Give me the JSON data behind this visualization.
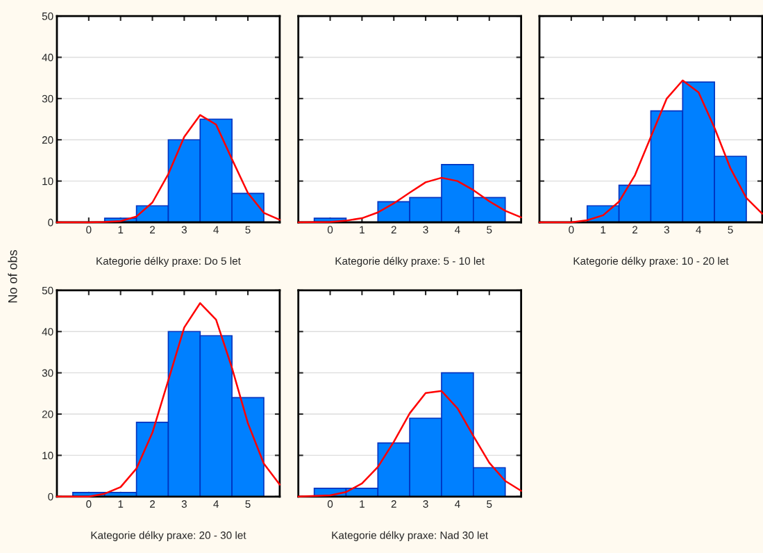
{
  "chart_data": [
    {
      "type": "histogram",
      "xlabel": "Kategorie délky praxe: Do 5 let",
      "ylabel": "No of obs",
      "xlim": [
        -1,
        6
      ],
      "xticks": [
        0,
        1,
        2,
        3,
        4,
        5
      ],
      "ylim": [
        0,
        50
      ],
      "yticks": [
        0,
        10,
        20,
        30,
        40,
        50
      ],
      "grid": "y",
      "series": [
        {
          "type": "histogram",
          "bins": [
            -0.5,
            0.5,
            1.5,
            2.5,
            3.5,
            4.5,
            5.5
          ],
          "values": [
            0,
            1,
            4,
            20,
            25,
            7
          ],
          "color": "#0080ff"
        },
        {
          "type": "line",
          "x": [
            -1,
            0,
            0.5,
            1,
            1.5,
            2,
            2.5,
            3,
            3.5,
            4,
            4.5,
            5,
            5.5,
            6
          ],
          "values": [
            0,
            0,
            0.1,
            0.3,
            1.4,
            4.8,
            11.7,
            20.7,
            26,
            23.7,
            15.3,
            7.1,
            2.3,
            0.6
          ],
          "color": "#ff0000"
        }
      ]
    },
    {
      "type": "histogram",
      "xlabel": "Kategorie délky praxe: 5 - 10 let",
      "xlim": [
        -1,
        6
      ],
      "xticks": [
        0,
        1,
        2,
        3,
        4,
        5
      ],
      "ylim": [
        0,
        50
      ],
      "yticks": [
        0,
        10,
        20,
        30,
        40,
        50
      ],
      "grid": "y",
      "tick_labels": "x",
      "series": [
        {
          "type": "histogram",
          "bins": [
            -0.5,
            0.5,
            1.5,
            2.5,
            3.5,
            4.5,
            5.5
          ],
          "values": [
            1,
            0,
            5,
            6,
            14,
            6
          ],
          "color": "#0080ff"
        },
        {
          "type": "line",
          "x": [
            -1,
            0,
            0.5,
            1,
            1.5,
            2,
            2.5,
            3,
            3.5,
            4,
            4.5,
            5,
            5.5,
            6
          ],
          "values": [
            0,
            0.1,
            0.4,
            1,
            2.4,
            4.6,
            7.2,
            9.7,
            10.8,
            10,
            7.8,
            5.1,
            2.8,
            1.2
          ],
          "color": "#ff0000"
        }
      ]
    },
    {
      "type": "histogram",
      "xlabel": "Kategorie délky praxe: 10 - 20 let",
      "xlim": [
        -1,
        6
      ],
      "xticks": [
        0,
        1,
        2,
        3,
        4,
        5
      ],
      "ylim": [
        0,
        50
      ],
      "yticks": [
        0,
        10,
        20,
        30,
        40,
        50
      ],
      "grid": "y",
      "tick_labels": "x",
      "series": [
        {
          "type": "histogram",
          "bins": [
            -0.5,
            0.5,
            1.5,
            2.5,
            3.5,
            4.5,
            5.5
          ],
          "values": [
            0,
            4,
            9,
            27,
            34,
            16
          ],
          "color": "#0080ff"
        },
        {
          "type": "line",
          "x": [
            -1,
            0,
            0.5,
            1,
            1.5,
            2,
            2.5,
            3,
            3.5,
            4,
            4.5,
            5,
            5.5,
            6
          ],
          "values": [
            0,
            0,
            0.5,
            1.7,
            5,
            11.4,
            20.7,
            30,
            34.4,
            31.5,
            22.9,
            13.1,
            5.9,
            2.1
          ],
          "color": "#ff0000"
        }
      ]
    },
    {
      "type": "histogram",
      "xlabel": "Kategorie délky praxe: 20 - 30 let",
      "xlim": [
        -1,
        6
      ],
      "xticks": [
        0,
        1,
        2,
        3,
        4,
        5
      ],
      "ylim": [
        0,
        50
      ],
      "yticks": [
        0,
        10,
        20,
        30,
        40,
        50
      ],
      "grid": "y",
      "series": [
        {
          "type": "histogram",
          "bins": [
            -0.5,
            0.5,
            1.5,
            2.5,
            3.5,
            4.5,
            5.5
          ],
          "values": [
            1,
            1,
            18,
            40,
            39,
            24
          ],
          "color": "#0080ff"
        },
        {
          "type": "line",
          "x": [
            -1,
            0,
            0.5,
            1,
            1.5,
            2,
            2.5,
            3,
            3.5,
            4,
            4.5,
            5,
            5.5,
            6
          ],
          "values": [
            0,
            0,
            0.7,
            2.3,
            6.8,
            15.5,
            28.2,
            41,
            46.9,
            42.9,
            31.2,
            17.8,
            8,
            2.9
          ],
          "color": "#ff0000"
        }
      ]
    },
    {
      "type": "histogram",
      "xlabel": "Kategorie délky praxe: Nad 30 let",
      "xlim": [
        -1,
        6
      ],
      "xticks": [
        0,
        1,
        2,
        3,
        4,
        5
      ],
      "ylim": [
        0,
        50
      ],
      "yticks": [
        0,
        10,
        20,
        30,
        40,
        50
      ],
      "grid": "y",
      "tick_labels": "x",
      "series": [
        {
          "type": "histogram",
          "bins": [
            -0.5,
            0.5,
            1.5,
            2.5,
            3.5,
            4.5,
            5.5
          ],
          "values": [
            2,
            2,
            13,
            19,
            30,
            7
          ],
          "color": "#0080ff"
        },
        {
          "type": "line",
          "x": [
            -1,
            0,
            0.5,
            1,
            1.5,
            2,
            2.5,
            3,
            3.5,
            4,
            4.5,
            5,
            5.5,
            6
          ],
          "values": [
            0,
            0.3,
            1.1,
            3.2,
            7.2,
            13.3,
            20.2,
            25.1,
            25.6,
            21.4,
            14.7,
            8.2,
            3.8,
            1.4
          ],
          "color": "#ff0000"
        }
      ]
    }
  ]
}
